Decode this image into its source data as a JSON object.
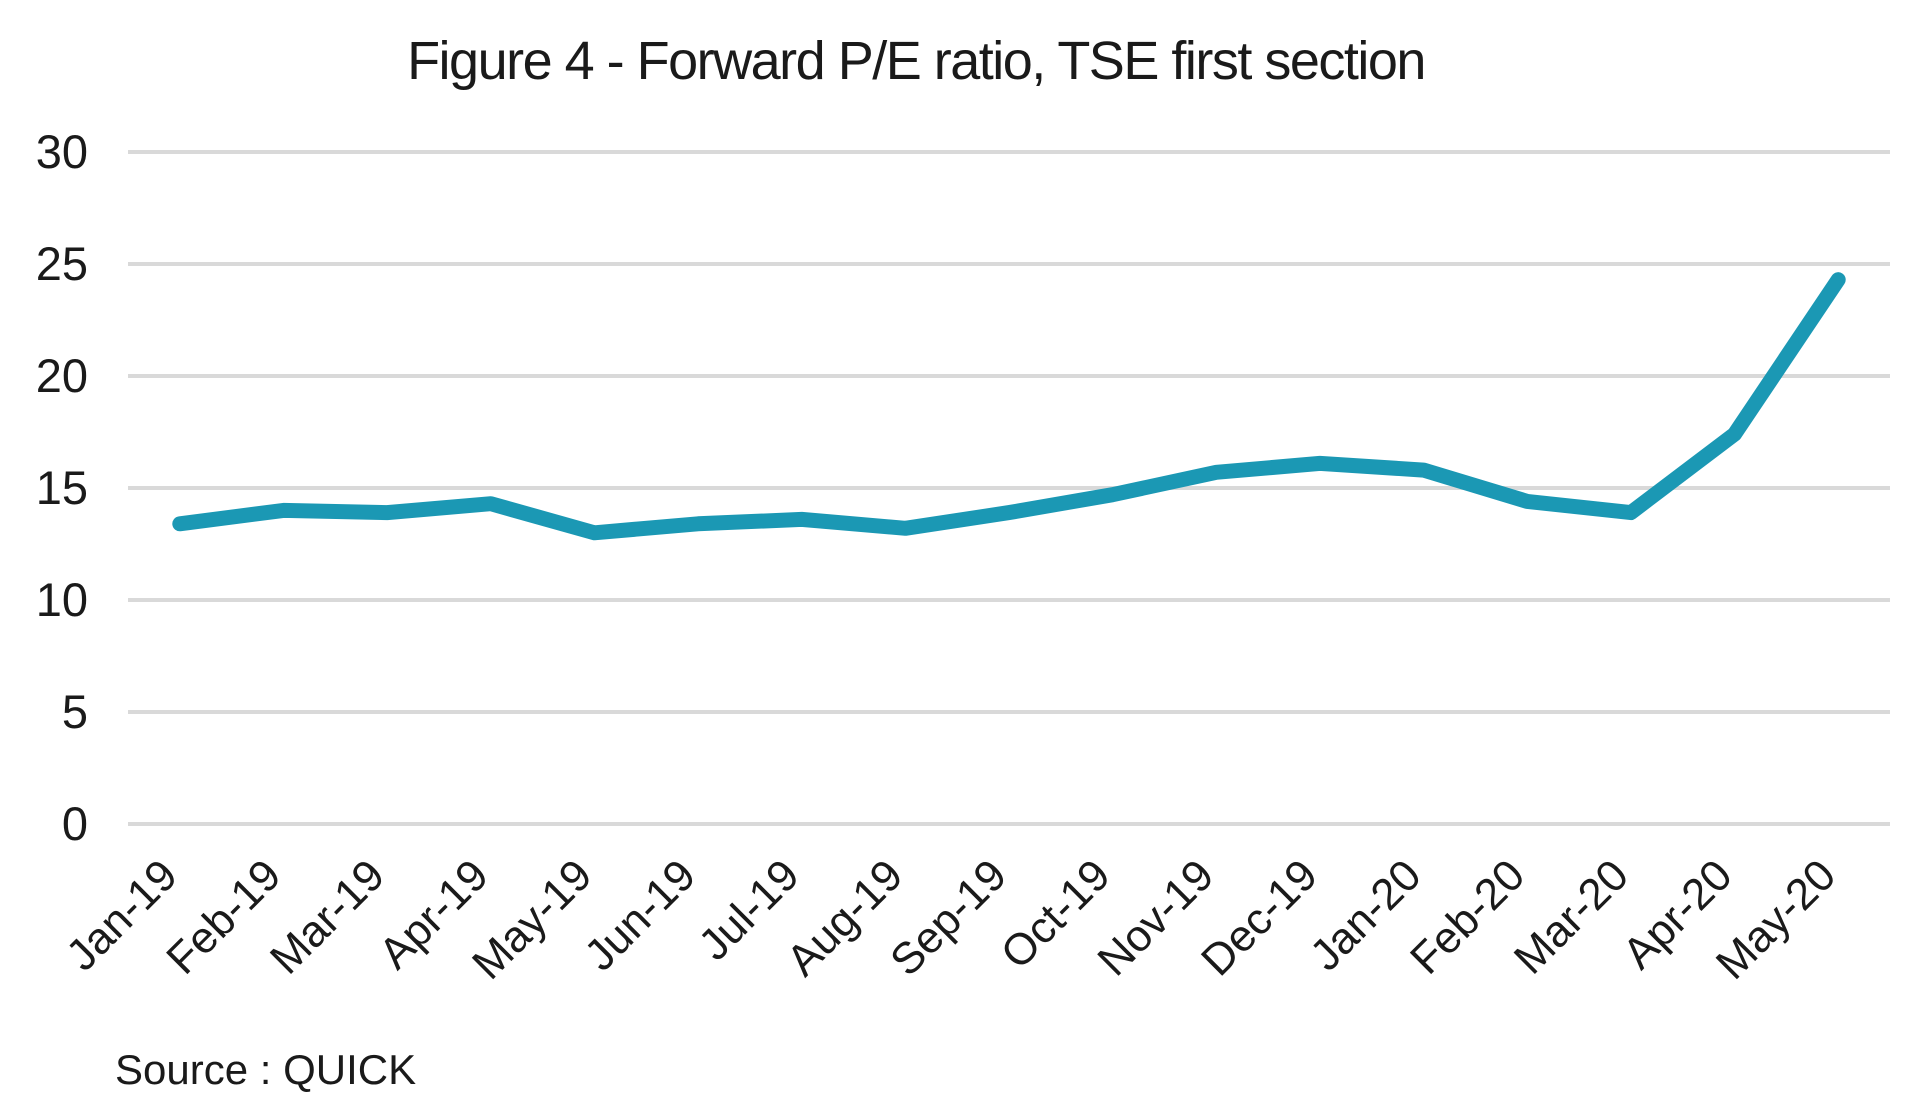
{
  "chart_data": {
    "type": "line",
    "title": "Figure 4 - Forward P/E ratio, TSE first section",
    "source": "Source : QUICK",
    "categories": [
      "Jan-19",
      "Feb-19",
      "Mar-19",
      "Apr-19",
      "May-19",
      "Jun-19",
      "Jul-19",
      "Aug-19",
      "Sep-19",
      "Oct-19",
      "Nov-19",
      "Dec-19",
      "Jan-20",
      "Feb-20",
      "Mar-20",
      "Apr-20",
      "May-20"
    ],
    "series": [
      {
        "name": "Forward P/E ratio, TSE first section",
        "values": [
          13.4,
          14.0,
          13.9,
          14.3,
          13.0,
          13.4,
          13.6,
          13.2,
          13.9,
          14.7,
          15.7,
          16.1,
          15.8,
          14.4,
          13.9,
          17.4,
          24.3
        ]
      }
    ],
    "xlabel": "",
    "ylabel": "",
    "ylim": [
      0,
      30
    ],
    "yticks": [
      0,
      5,
      10,
      15,
      20,
      25,
      30
    ],
    "grid": true,
    "legend": false,
    "line_color": "#1B98B4",
    "gridline_color": "#D9D9D9",
    "text_color": "#1a1a1a",
    "background_color": "#ffffff"
  }
}
